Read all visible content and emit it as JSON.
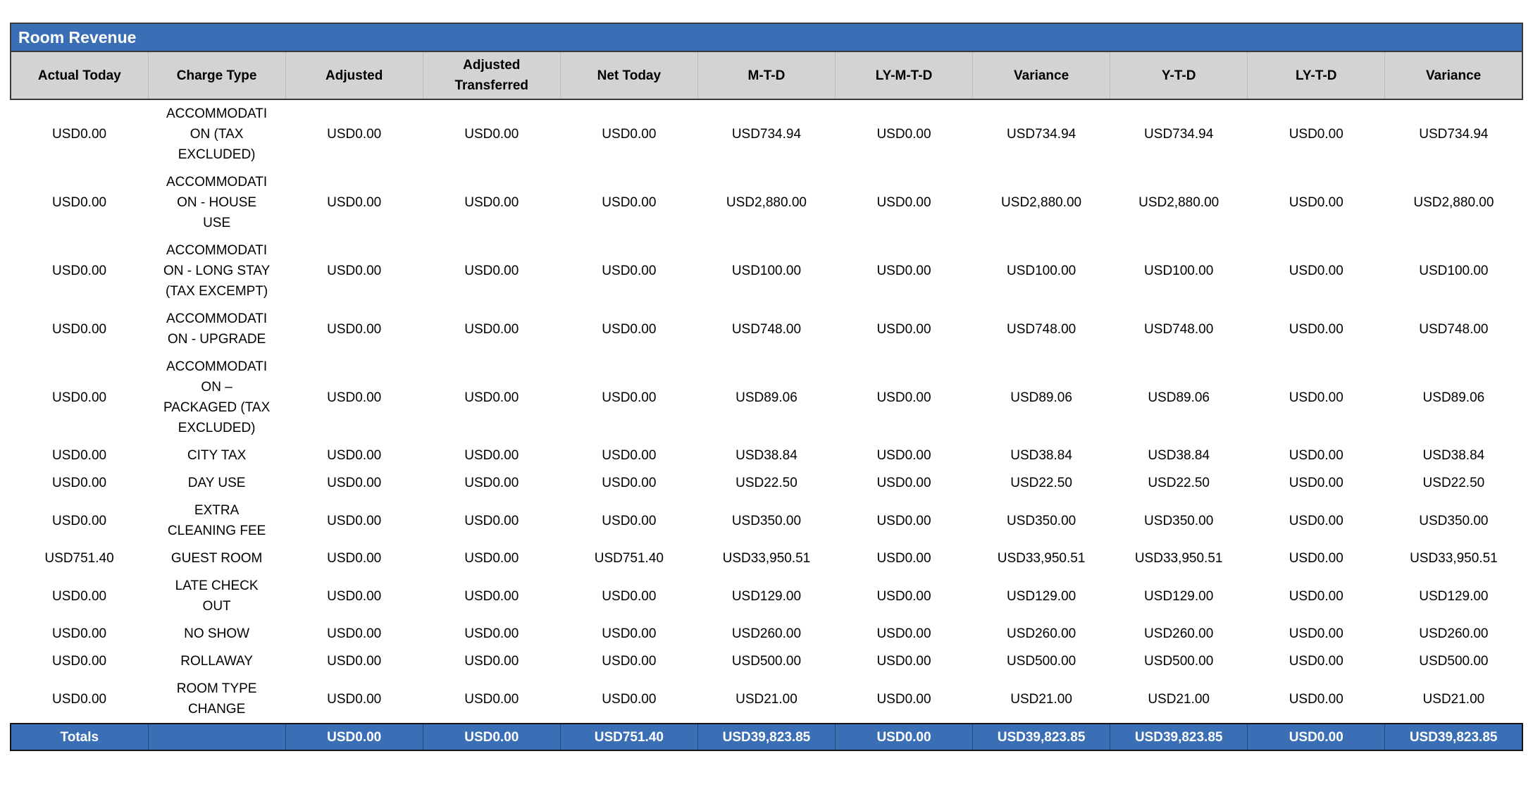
{
  "colors": {
    "accent_blue": "#3A6FB5",
    "header_gray": "#D3D3D3",
    "border_dark": "#3A3A3A",
    "body_text": "#000000",
    "inverse_text": "#FFFFFF"
  },
  "table": {
    "title": "Room Revenue",
    "columns": [
      "Actual Today",
      "Charge Type",
      "Adjusted",
      "Adjusted Transferred",
      "Net Today",
      "M-T-D",
      "LY-M-T-D",
      "Variance",
      "Y-T-D",
      "LY-T-D",
      "Variance"
    ],
    "column_keys": [
      "actual-today",
      "charge-type",
      "adjusted",
      "adjusted-transferred",
      "net-today",
      "mtd",
      "ly-mtd",
      "variance-mtd",
      "ytd",
      "ly-td",
      "variance-ytd"
    ],
    "rows": [
      [
        "USD0.00",
        "ACCOMMODATION (TAX EXCLUDED)",
        "USD0.00",
        "USD0.00",
        "USD0.00",
        "USD734.94",
        "USD0.00",
        "USD734.94",
        "USD734.94",
        "USD0.00",
        "USD734.94"
      ],
      [
        "USD0.00",
        "ACCOMMODATION - HOUSE USE",
        "USD0.00",
        "USD0.00",
        "USD0.00",
        "USD2,880.00",
        "USD0.00",
        "USD2,880.00",
        "USD2,880.00",
        "USD0.00",
        "USD2,880.00"
      ],
      [
        "USD0.00",
        "ACCOMMODATION - LONG STAY (TAX EXCEMPT)",
        "USD0.00",
        "USD0.00",
        "USD0.00",
        "USD100.00",
        "USD0.00",
        "USD100.00",
        "USD100.00",
        "USD0.00",
        "USD100.00"
      ],
      [
        "USD0.00",
        "ACCOMMODATION - UPGRADE",
        "USD0.00",
        "USD0.00",
        "USD0.00",
        "USD748.00",
        "USD0.00",
        "USD748.00",
        "USD748.00",
        "USD0.00",
        "USD748.00"
      ],
      [
        "USD0.00",
        "ACCOMMODATION – PACKAGED (TAX EXCLUDED)",
        "USD0.00",
        "USD0.00",
        "USD0.00",
        "USD89.06",
        "USD0.00",
        "USD89.06",
        "USD89.06",
        "USD0.00",
        "USD89.06"
      ],
      [
        "USD0.00",
        "CITY TAX",
        "USD0.00",
        "USD0.00",
        "USD0.00",
        "USD38.84",
        "USD0.00",
        "USD38.84",
        "USD38.84",
        "USD0.00",
        "USD38.84"
      ],
      [
        "USD0.00",
        "DAY USE",
        "USD0.00",
        "USD0.00",
        "USD0.00",
        "USD22.50",
        "USD0.00",
        "USD22.50",
        "USD22.50",
        "USD0.00",
        "USD22.50"
      ],
      [
        "USD0.00",
        "EXTRA CLEANING FEE",
        "USD0.00",
        "USD0.00",
        "USD0.00",
        "USD350.00",
        "USD0.00",
        "USD350.00",
        "USD350.00",
        "USD0.00",
        "USD350.00"
      ],
      [
        "USD751.40",
        "GUEST ROOM",
        "USD0.00",
        "USD0.00",
        "USD751.40",
        "USD33,950.51",
        "USD0.00",
        "USD33,950.51",
        "USD33,950.51",
        "USD0.00",
        "USD33,950.51"
      ],
      [
        "USD0.00",
        "LATE CHECK OUT",
        "USD0.00",
        "USD0.00",
        "USD0.00",
        "USD129.00",
        "USD0.00",
        "USD129.00",
        "USD129.00",
        "USD0.00",
        "USD129.00"
      ],
      [
        "USD0.00",
        "NO SHOW",
        "USD0.00",
        "USD0.00",
        "USD0.00",
        "USD260.00",
        "USD0.00",
        "USD260.00",
        "USD260.00",
        "USD0.00",
        "USD260.00"
      ],
      [
        "USD0.00",
        "ROLLAWAY",
        "USD0.00",
        "USD0.00",
        "USD0.00",
        "USD500.00",
        "USD0.00",
        "USD500.00",
        "USD500.00",
        "USD0.00",
        "USD500.00"
      ],
      [
        "USD0.00",
        "ROOM TYPE CHANGE",
        "USD0.00",
        "USD0.00",
        "USD0.00",
        "USD21.00",
        "USD0.00",
        "USD21.00",
        "USD21.00",
        "USD0.00",
        "USD21.00"
      ]
    ],
    "totals": [
      "Totals",
      "",
      "USD0.00",
      "USD0.00",
      "USD751.40",
      "USD39,823.85",
      "USD0.00",
      "USD39,823.85",
      "USD39,823.85",
      "USD0.00",
      "USD39,823.85"
    ]
  }
}
